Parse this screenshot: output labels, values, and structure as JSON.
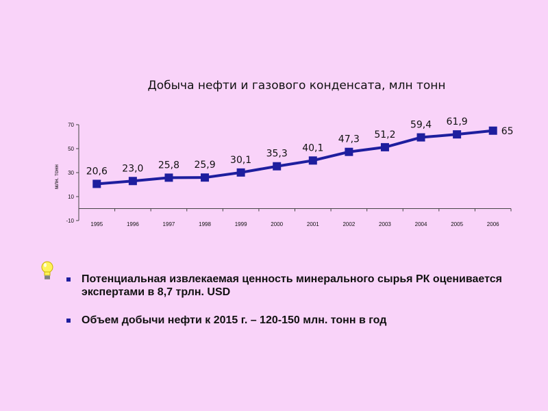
{
  "chart_data": {
    "type": "line",
    "title": "Добыча нефти и газового конденсата, млн тонн",
    "ylabel": "млн. тонн",
    "xlabel": "",
    "categories": [
      "1995",
      "1996",
      "1997",
      "1998",
      "1999",
      "2000",
      "2001",
      "2002",
      "2003",
      "2004",
      "2005",
      "2006"
    ],
    "series": [
      {
        "values": [
          20.6,
          23.0,
          25.8,
          25.9,
          30.1,
          35.3,
          40.1,
          47.3,
          51.2,
          59.4,
          61.9,
          65
        ],
        "labels": [
          "20,6",
          "23,0",
          "25,8",
          "25,9",
          "30,1",
          "35,3",
          "40,1",
          "47,3",
          "51,2",
          "59,4",
          "61,9",
          "65"
        ]
      }
    ],
    "ylim": [
      -10,
      70
    ],
    "yticks": [
      "70",
      "50",
      "30",
      "10",
      "-10"
    ],
    "ytick_values": [
      70,
      50,
      30,
      10,
      -10
    ],
    "grid": false,
    "line_color": "#1E1E9E"
  },
  "bullets": [
    "Потенциальная извлекаемая ценность минерального сырья РК оценивается экспертами в 8,7 трлн. USD",
    "Объем добычи нефти к 2015 г. – 120-150  млн. тонн в год"
  ],
  "colors": {
    "background": "#F9D3F9",
    "bullet": "#1E1E9E"
  },
  "icons": {
    "bulb": "lightbulb-icon"
  }
}
